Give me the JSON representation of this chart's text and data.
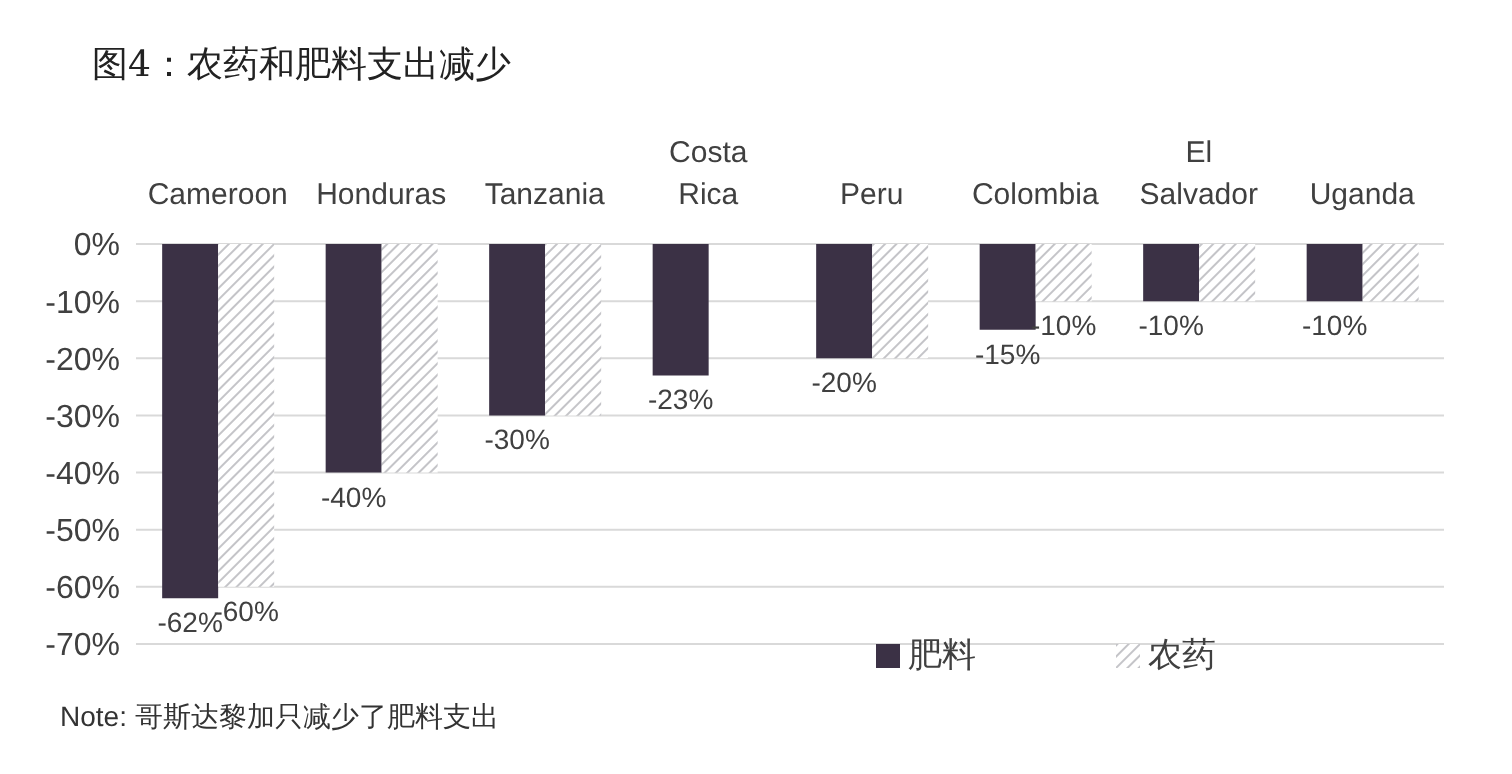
{
  "chart_data": {
    "type": "bar",
    "title": "图4：农药和肥料支出减少",
    "categories": [
      "Cameroon",
      "Honduras",
      "Tanzania",
      "Costa Rica",
      "Peru",
      "Colombia",
      "El Salvador",
      "Uganda"
    ],
    "series": [
      {
        "name": "肥料",
        "color": "#3b3145",
        "values": [
          -62,
          -40,
          -30,
          -23,
          -20,
          -15,
          -10,
          -10
        ],
        "value_labels": [
          "-62%",
          "-40%",
          "-30%",
          "-23%",
          "-20%",
          "-15%",
          "-10%",
          "-10%"
        ]
      },
      {
        "name": "农药",
        "color": "#c4c4c8",
        "values": [
          -60,
          -40,
          -30,
          0,
          -20,
          -10,
          -10,
          -10
        ],
        "value_labels": [
          "-60%",
          null,
          null,
          null,
          null,
          "-10%",
          null,
          null
        ]
      }
    ],
    "ylim": [
      -70,
      0
    ],
    "yticks": [
      {
        "value": 0,
        "label": "0%"
      },
      {
        "value": -10,
        "label": "-10%"
      },
      {
        "value": -20,
        "label": "-20%"
      },
      {
        "value": -30,
        "label": "-30%"
      },
      {
        "value": -40,
        "label": "-40%"
      },
      {
        "value": -50,
        "label": "-50%"
      },
      {
        "value": -60,
        "label": "-60%"
      },
      {
        "value": -70,
        "label": "-70%"
      }
    ],
    "grid": "y",
    "legend": "bottom right",
    "annotations": [
      "Note: 哥斯达黎加只减少了肥料支出"
    ]
  }
}
